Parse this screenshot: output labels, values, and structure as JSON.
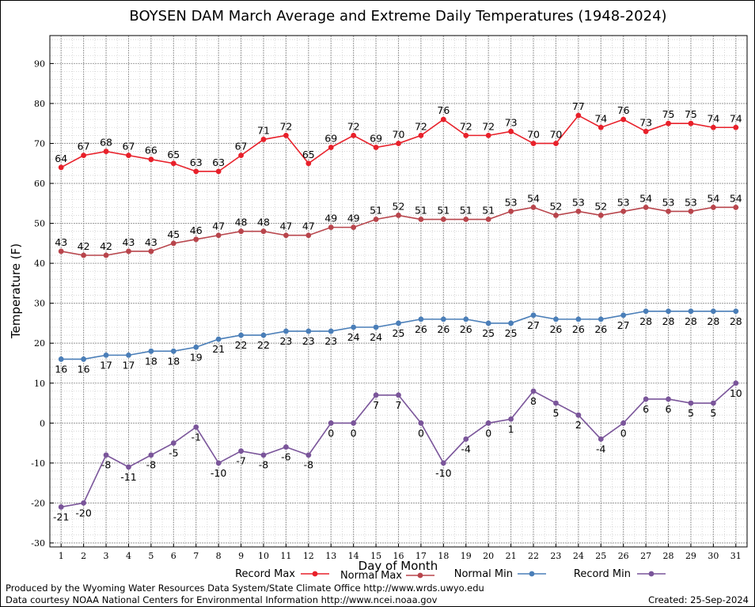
{
  "chart_data": {
    "type": "line",
    "title": "BOYSEN DAM March Average and Extreme Daily Temperatures (1948-2024)",
    "xlabel": "Day of Month",
    "ylabel": "Temperature (F)",
    "x": [
      1,
      2,
      3,
      4,
      5,
      6,
      7,
      8,
      9,
      10,
      11,
      12,
      13,
      14,
      15,
      16,
      17,
      18,
      19,
      20,
      21,
      22,
      23,
      24,
      25,
      26,
      27,
      28,
      29,
      30,
      31
    ],
    "xlim": [
      0.5,
      31.5
    ],
    "ylim": [
      -31,
      97
    ],
    "yticks": [
      -30,
      -20,
      -10,
      0,
      10,
      20,
      30,
      40,
      50,
      60,
      70,
      80,
      90
    ],
    "grid": true,
    "legend_position": "bottom",
    "series": [
      {
        "name": "Record Max",
        "color": "#e8202a",
        "label_position": "above",
        "values": [
          64,
          67,
          68,
          67,
          66,
          65,
          63,
          63,
          67,
          71,
          72,
          65,
          69,
          72,
          69,
          70,
          72,
          76,
          72,
          72,
          73,
          70,
          70,
          77,
          74,
          76,
          73,
          75,
          75,
          74,
          74
        ]
      },
      {
        "name": "Normal Max",
        "color": "#b8454c",
        "label_position": "above",
        "values": [
          43,
          42,
          42,
          43,
          43,
          45,
          46,
          47,
          48,
          48,
          47,
          47,
          49,
          49,
          51,
          52,
          51,
          51,
          51,
          51,
          53,
          54,
          52,
          53,
          52,
          53,
          54,
          53,
          53,
          54,
          54
        ]
      },
      {
        "name": "Normal Min",
        "color": "#4a7eb8",
        "label_position": "below",
        "values": [
          16,
          16,
          17,
          17,
          18,
          18,
          19,
          21,
          22,
          22,
          23,
          23,
          23,
          24,
          24,
          25,
          26,
          26,
          26,
          25,
          25,
          27,
          26,
          26,
          26,
          27,
          28,
          28,
          28,
          28,
          28
        ]
      },
      {
        "name": "Record Min",
        "color": "#7a559a",
        "label_position": "below",
        "values": [
          -21,
          -20,
          -8,
          -11,
          -8,
          -5,
          -1,
          -10,
          -7,
          -8,
          -6,
          -8,
          0,
          0,
          7,
          7,
          0,
          -10,
          -4,
          0,
          1,
          8,
          5,
          2,
          -4,
          0,
          6,
          6,
          5,
          5,
          10
        ]
      }
    ]
  },
  "footer": {
    "left_line1": "Produced by the Wyoming Water Resources Data System/State Climate Office http://www.wrds.uwyo.edu",
    "left_line2": "Data courtesy NOAA National Centers for Environmental Information http://www.ncei.noaa.gov",
    "right_line2": "Created:  25-Sep-2024"
  }
}
